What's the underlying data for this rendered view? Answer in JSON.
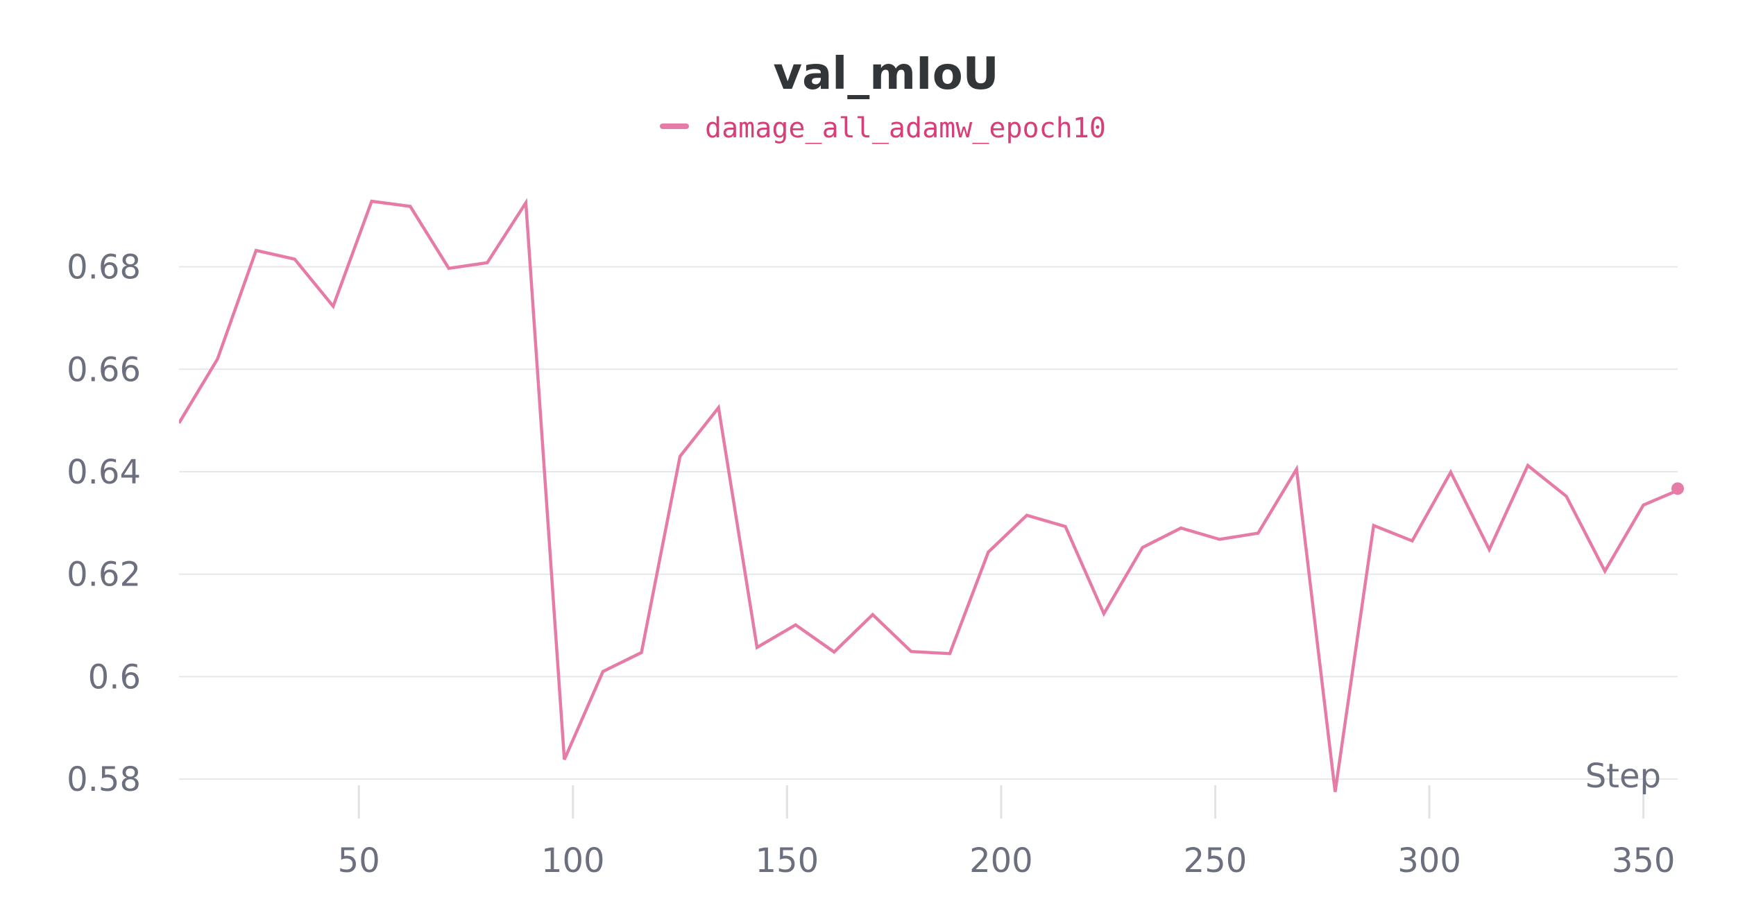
{
  "chart_data": {
    "type": "line",
    "title": "val_mIoU",
    "xlabel": "Step",
    "ylabel": "",
    "xlim": [
      8,
      358
    ],
    "ylim": [
      0.575,
      0.705
    ],
    "x_ticks": [
      50,
      100,
      150,
      200,
      250,
      300,
      350
    ],
    "x_tick_labels": [
      "50",
      "100",
      "150",
      "200",
      "250",
      "300",
      "350"
    ],
    "y_ticks": [
      0.58,
      0.6,
      0.62,
      0.64,
      0.66,
      0.68
    ],
    "y_tick_labels": [
      "0.58",
      "0.6",
      "0.62",
      "0.64",
      "0.66",
      "0.68"
    ],
    "grid": true,
    "legend_position": "top-center",
    "series": [
      {
        "name": "damage_all_adamw_epoch10",
        "color": "#e57ba6",
        "x": [
          8,
          17,
          26,
          35,
          44,
          53,
          62,
          71,
          80,
          89,
          98,
          107,
          116,
          125,
          134,
          143,
          152,
          161,
          170,
          179,
          188,
          197,
          206,
          215,
          224,
          233,
          242,
          251,
          260,
          269,
          278,
          287,
          296,
          305,
          314,
          323,
          332,
          341,
          350,
          359
        ],
        "y": [
          0.6495,
          0.662,
          0.6832,
          0.6815,
          0.6723,
          0.6928,
          0.6918,
          0.6797,
          0.6808,
          0.6925,
          0.5838,
          0.601,
          0.6047,
          0.643,
          0.6525,
          0.6057,
          0.6101,
          0.6048,
          0.6121,
          0.6049,
          0.6045,
          0.6243,
          0.6315,
          0.6293,
          0.6123,
          0.6252,
          0.629,
          0.6268,
          0.628,
          0.6405,
          0.5775,
          0.6295,
          0.6265,
          0.6399,
          0.6248,
          0.6412,
          0.6352,
          0.6206,
          0.6335,
          0.6367
        ]
      }
    ]
  }
}
